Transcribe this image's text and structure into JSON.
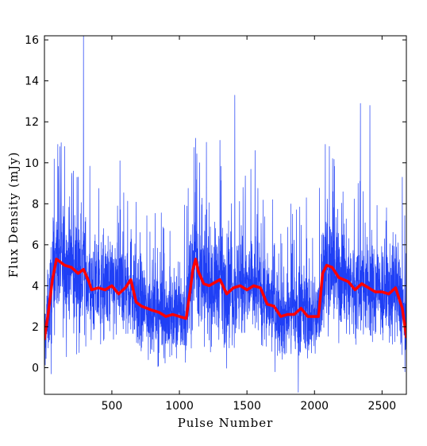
{
  "chart_data": {
    "type": "line",
    "title": "",
    "xlabel": "Pulse Number",
    "ylabel": "Flux Density (mJy)",
    "xlim": [
      1,
      2680
    ],
    "ylim": [
      -1.3,
      16.2
    ],
    "xticks": [
      500,
      1000,
      1500,
      2000,
      2500
    ],
    "yticks": [
      0,
      2,
      4,
      6,
      8,
      10,
      12,
      14,
      16
    ],
    "grid": false,
    "legend": "none",
    "colors": {
      "raw": "#1f3ff5",
      "smoothed": "#ff0000"
    },
    "series": [
      {
        "style": "thin line (single-pulse flux density)",
        "noise_sd": 1.5,
        "spikes": [
          [
            100,
            10.9
          ],
          [
            150,
            10.8
          ],
          [
            215,
            9.6
          ],
          [
            290,
            16.2
          ],
          [
            560,
            10.1
          ],
          [
            1120,
            11.2
          ],
          [
            1150,
            10.0
          ],
          [
            1200,
            11.0
          ],
          [
            1300,
            11.1
          ],
          [
            1410,
            13.3
          ],
          [
            1560,
            10.6
          ],
          [
            2080,
            10.9
          ],
          [
            2110,
            10.8
          ],
          [
            2340,
            12.9
          ],
          [
            2410,
            12.8
          ],
          [
            2650,
            9.3
          ]
        ],
        "dips": [
          [
            50,
            -0.3
          ],
          [
            1880,
            -1.2
          ]
        ]
      },
      {
        "style": "thick line (running mean)",
        "x": [
          1,
          30,
          60,
          90,
          110,
          150,
          200,
          250,
          290,
          330,
          350,
          400,
          450,
          500,
          550,
          600,
          640,
          680,
          720,
          800,
          850,
          900,
          950,
          1000,
          1050,
          1080,
          1100,
          1120,
          1140,
          1180,
          1220,
          1300,
          1350,
          1400,
          1450,
          1500,
          1550,
          1600,
          1650,
          1700,
          1750,
          1800,
          1850,
          1900,
          1950,
          2000,
          2030,
          2060,
          2090,
          2130,
          2180,
          2250,
          2300,
          2350,
          2400,
          2450,
          2500,
          2550,
          2600,
          2650,
          2680
        ],
        "y": [
          1.4,
          2.7,
          4.3,
          5.3,
          5.2,
          5.0,
          4.9,
          4.6,
          4.8,
          4.2,
          3.8,
          3.9,
          3.8,
          4.0,
          3.6,
          3.9,
          4.3,
          3.2,
          3.0,
          2.8,
          2.7,
          2.5,
          2.6,
          2.5,
          2.4,
          3.8,
          4.8,
          5.3,
          4.7,
          4.1,
          4.0,
          4.3,
          3.6,
          3.9,
          4.0,
          3.8,
          4.0,
          3.9,
          3.1,
          3.0,
          2.5,
          2.6,
          2.6,
          2.9,
          2.5,
          2.5,
          2.5,
          4.6,
          5.0,
          4.9,
          4.4,
          4.2,
          3.8,
          4.1,
          3.9,
          3.7,
          3.7,
          3.6,
          3.9,
          2.9,
          1.5
        ]
      }
    ]
  }
}
